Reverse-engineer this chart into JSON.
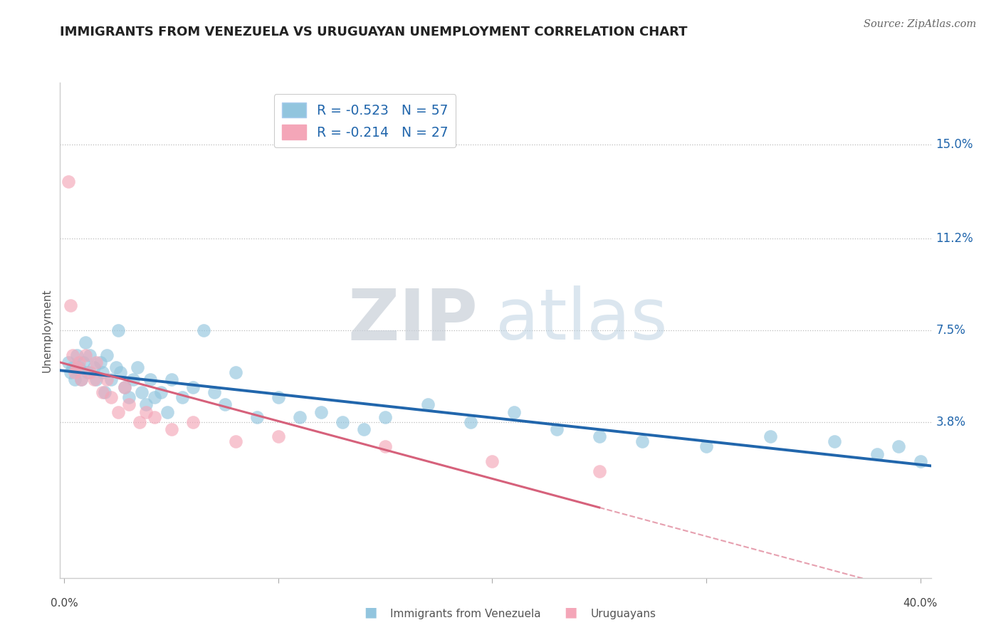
{
  "title": "IMMIGRANTS FROM VENEZUELA VS URUGUAYAN UNEMPLOYMENT CORRELATION CHART",
  "source": "Source: ZipAtlas.com",
  "ylabel": "Unemployment",
  "ytick_labels": [
    "15.0%",
    "11.2%",
    "7.5%",
    "3.8%"
  ],
  "ytick_values": [
    0.15,
    0.112,
    0.075,
    0.038
  ],
  "xlim": [
    -0.002,
    0.405
  ],
  "ylim": [
    -0.025,
    0.175
  ],
  "legend_blue_r": "R = -0.523",
  "legend_blue_n": "N = 57",
  "legend_pink_r": "R = -0.214",
  "legend_pink_n": "N = 27",
  "legend_label_blue": "Immigrants from Venezuela",
  "legend_label_pink": "Uruguayans",
  "blue_color": "#92c5de",
  "pink_color": "#f4a6b8",
  "blue_line_color": "#2166ac",
  "pink_line_color": "#d6617b",
  "watermark_zip": "ZIP",
  "watermark_atlas": "atlas",
  "blue_scatter_x": [
    0.002,
    0.003,
    0.004,
    0.005,
    0.006,
    0.007,
    0.008,
    0.009,
    0.01,
    0.011,
    0.012,
    0.014,
    0.015,
    0.017,
    0.018,
    0.019,
    0.02,
    0.022,
    0.024,
    0.025,
    0.026,
    0.028,
    0.03,
    0.032,
    0.034,
    0.036,
    0.038,
    0.04,
    0.042,
    0.045,
    0.048,
    0.05,
    0.055,
    0.06,
    0.065,
    0.07,
    0.075,
    0.08,
    0.09,
    0.1,
    0.11,
    0.12,
    0.13,
    0.14,
    0.15,
    0.17,
    0.19,
    0.21,
    0.23,
    0.25,
    0.27,
    0.3,
    0.33,
    0.36,
    0.38,
    0.39,
    0.4
  ],
  "blue_scatter_y": [
    0.062,
    0.058,
    0.06,
    0.055,
    0.065,
    0.06,
    0.055,
    0.062,
    0.07,
    0.058,
    0.065,
    0.06,
    0.055,
    0.062,
    0.058,
    0.05,
    0.065,
    0.055,
    0.06,
    0.075,
    0.058,
    0.052,
    0.048,
    0.055,
    0.06,
    0.05,
    0.045,
    0.055,
    0.048,
    0.05,
    0.042,
    0.055,
    0.048,
    0.052,
    0.075,
    0.05,
    0.045,
    0.058,
    0.04,
    0.048,
    0.04,
    0.042,
    0.038,
    0.035,
    0.04,
    0.045,
    0.038,
    0.042,
    0.035,
    0.032,
    0.03,
    0.028,
    0.032,
    0.03,
    0.025,
    0.028,
    0.022
  ],
  "pink_scatter_x": [
    0.002,
    0.003,
    0.004,
    0.005,
    0.006,
    0.007,
    0.008,
    0.01,
    0.012,
    0.014,
    0.015,
    0.018,
    0.02,
    0.022,
    0.025,
    0.028,
    0.03,
    0.035,
    0.038,
    0.042,
    0.05,
    0.06,
    0.08,
    0.1,
    0.15,
    0.2,
    0.25
  ],
  "pink_scatter_y": [
    0.135,
    0.085,
    0.065,
    0.058,
    0.06,
    0.062,
    0.055,
    0.065,
    0.058,
    0.055,
    0.062,
    0.05,
    0.055,
    0.048,
    0.042,
    0.052,
    0.045,
    0.038,
    0.042,
    0.04,
    0.035,
    0.038,
    0.03,
    0.032,
    0.028,
    0.022,
    0.018
  ]
}
